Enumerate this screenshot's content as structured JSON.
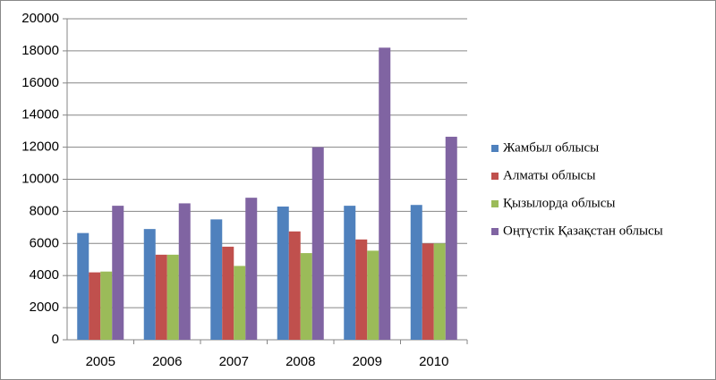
{
  "chart_data": {
    "type": "bar",
    "categories": [
      "2005",
      "2006",
      "2007",
      "2008",
      "2009",
      "2010"
    ],
    "series": [
      {
        "name": "Жамбыл облысы",
        "color": "#4f81bd",
        "values": [
          6650,
          6900,
          7500,
          8300,
          8350,
          8400
        ]
      },
      {
        "name": "Алматы облысы",
        "color": "#c0504d",
        "values": [
          4200,
          5300,
          5800,
          6750,
          6250,
          6000
        ]
      },
      {
        "name": "Қызылорда облысы",
        "color": "#9bbb59",
        "values": [
          4250,
          5300,
          4600,
          5400,
          5550,
          6000
        ]
      },
      {
        "name": "Оңтүстік Қазақстан облысы",
        "color": "#8064a2",
        "values": [
          8350,
          8500,
          8850,
          12000,
          18200,
          12650
        ]
      }
    ],
    "ylim": [
      0,
      20000
    ],
    "yticks": [
      0,
      2000,
      4000,
      6000,
      8000,
      10000,
      12000,
      14000,
      16000,
      18000,
      20000
    ],
    "grid": true,
    "legend": "right"
  }
}
